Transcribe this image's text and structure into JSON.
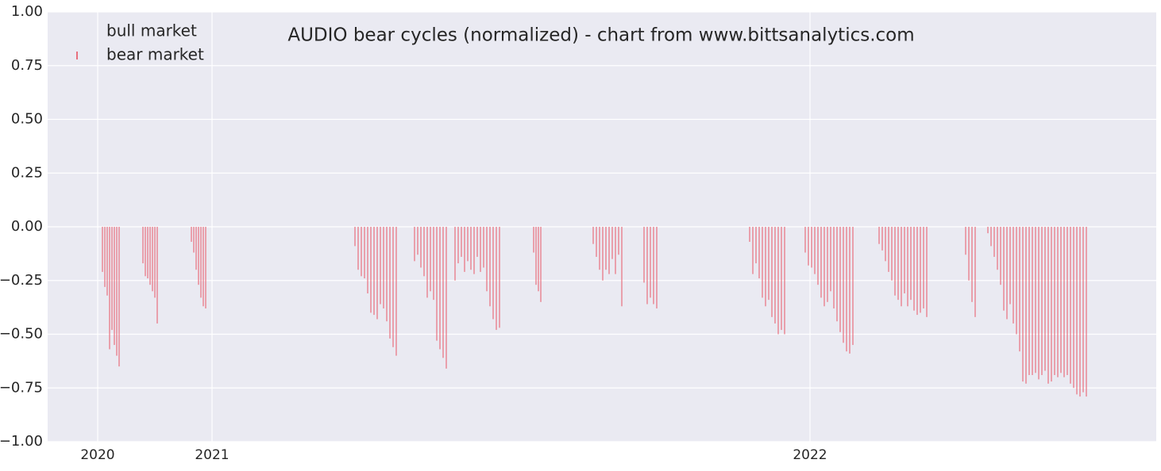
{
  "chart_data": {
    "type": "bar",
    "title": "AUDIO bear cycles (normalized)  - chart from www.bittsanalytics.com",
    "xlim": [
      0,
      1396
    ],
    "xticks": [
      {
        "value": 63,
        "label": "2020"
      },
      {
        "value": 207,
        "label": "2021"
      },
      {
        "value": 960,
        "label": "2022"
      }
    ],
    "ylim": [
      -1,
      1
    ],
    "yticks": [
      {
        "value": -1,
        "label": "−1.00"
      },
      {
        "value": -0.75,
        "label": "−0.75"
      },
      {
        "value": -0.5,
        "label": "−0.50"
      },
      {
        "value": -0.25,
        "label": "−0.25"
      },
      {
        "value": 0,
        "label": "0.00"
      },
      {
        "value": 0.25,
        "label": "0.25"
      },
      {
        "value": 0.5,
        "label": "0.50"
      },
      {
        "value": 0.75,
        "label": "0.75"
      },
      {
        "value": 1,
        "label": "1.00"
      }
    ],
    "grid": true,
    "legend": "upper left",
    "series": [
      {
        "name": "bull market",
        "color": "#4c9f5a",
        "x": [],
        "values": []
      },
      {
        "name": "bear market",
        "color": "#e8707e",
        "x": [
          69,
          72,
          75,
          78,
          81,
          84,
          87,
          90,
          120,
          123,
          126,
          129,
          132,
          135,
          138,
          181,
          184,
          187,
          190,
          193,
          196,
          199,
          387,
          391,
          395,
          399,
          403,
          407,
          411,
          415,
          419,
          423,
          427,
          431,
          435,
          439,
          462,
          466,
          470,
          474,
          478,
          482,
          486,
          490,
          494,
          498,
          502,
          513,
          517,
          521,
          525,
          529,
          533,
          537,
          541,
          545,
          549,
          553,
          557,
          561,
          565,
          569,
          612,
          615,
          618,
          621,
          687,
          691,
          695,
          699,
          703,
          707,
          711,
          715,
          719,
          723,
          751,
          755,
          759,
          763,
          767,
          884,
          888,
          892,
          896,
          900,
          904,
          908,
          912,
          916,
          920,
          924,
          928,
          954,
          958,
          962,
          966,
          970,
          974,
          978,
          982,
          986,
          990,
          994,
          998,
          1002,
          1006,
          1010,
          1014,
          1047,
          1051,
          1055,
          1059,
          1063,
          1067,
          1071,
          1075,
          1079,
          1083,
          1087,
          1091,
          1095,
          1099,
          1103,
          1107,
          1156,
          1160,
          1164,
          1168,
          1184,
          1188,
          1192,
          1196,
          1200,
          1204,
          1208,
          1212,
          1216,
          1220,
          1224,
          1228,
          1232,
          1236,
          1240,
          1244,
          1248,
          1252,
          1256,
          1260,
          1264,
          1268,
          1272,
          1276,
          1280,
          1284,
          1288,
          1292,
          1296,
          1300,
          1304,
          1308
        ],
        "values": [
          -0.21,
          -0.28,
          -0.32,
          -0.57,
          -0.48,
          -0.55,
          -0.6,
          -0.65,
          -0.17,
          -0.23,
          -0.24,
          -0.27,
          -0.3,
          -0.33,
          -0.45,
          -0.07,
          -0.12,
          -0.2,
          -0.27,
          -0.33,
          -0.37,
          -0.38,
          -0.09,
          -0.2,
          -0.23,
          -0.24,
          -0.31,
          -0.4,
          -0.41,
          -0.43,
          -0.36,
          -0.38,
          -0.44,
          -0.52,
          -0.56,
          -0.6,
          -0.16,
          -0.13,
          -0.19,
          -0.23,
          -0.33,
          -0.3,
          -0.34,
          -0.53,
          -0.57,
          -0.61,
          -0.66,
          -0.25,
          -0.17,
          -0.14,
          -0.21,
          -0.16,
          -0.2,
          -0.22,
          -0.14,
          -0.21,
          -0.19,
          -0.3,
          -0.37,
          -0.43,
          -0.48,
          -0.47,
          -0.12,
          -0.27,
          -0.3,
          -0.35,
          -0.08,
          -0.14,
          -0.2,
          -0.25,
          -0.2,
          -0.22,
          -0.15,
          -0.22,
          -0.13,
          -0.37,
          -0.26,
          -0.36,
          -0.33,
          -0.36,
          -0.38,
          -0.07,
          -0.22,
          -0.17,
          -0.24,
          -0.33,
          -0.37,
          -0.34,
          -0.42,
          -0.45,
          -0.5,
          -0.48,
          -0.5,
          -0.12,
          -0.18,
          -0.19,
          -0.22,
          -0.27,
          -0.33,
          -0.37,
          -0.35,
          -0.3,
          -0.38,
          -0.44,
          -0.49,
          -0.54,
          -0.58,
          -0.59,
          -0.55,
          -0.08,
          -0.11,
          -0.16,
          -0.21,
          -0.25,
          -0.32,
          -0.34,
          -0.37,
          -0.31,
          -0.37,
          -0.34,
          -0.39,
          -0.41,
          -0.4,
          -0.38,
          -0.42,
          -0.13,
          -0.25,
          -0.35,
          -0.42,
          -0.03,
          -0.09,
          -0.14,
          -0.2,
          -0.27,
          -0.39,
          -0.43,
          -0.36,
          -0.45,
          -0.5,
          -0.58,
          -0.72,
          -0.73,
          -0.69,
          -0.69,
          -0.68,
          -0.71,
          -0.69,
          -0.67,
          -0.73,
          -0.72,
          -0.69,
          -0.7,
          -0.68,
          -0.7,
          -0.69,
          -0.73,
          -0.75,
          -0.78,
          -0.79,
          -0.77,
          -0.79
        ]
      }
    ]
  }
}
